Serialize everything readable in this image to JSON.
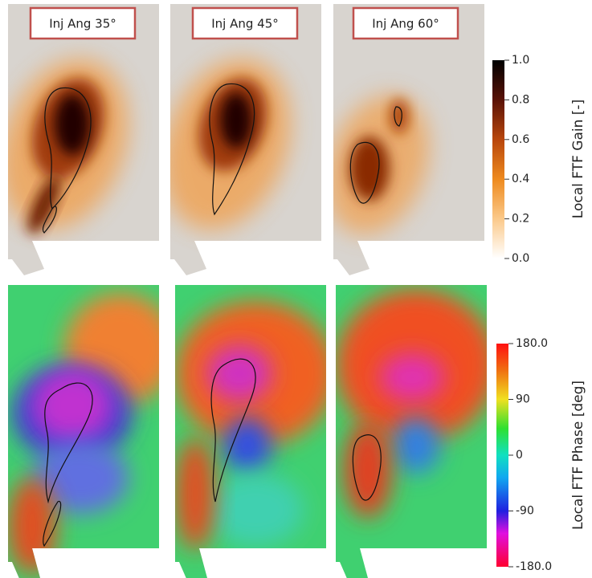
{
  "panels": [
    {
      "label": "Inj Ang 35°"
    },
    {
      "label": "Inj Ang 45°"
    },
    {
      "label": "Inj Ang 60°"
    }
  ],
  "colorbars": [
    {
      "title": "Local FTF Gain [-]",
      "lim": [
        0,
        1
      ],
      "ticks": [
        {
          "value": 0,
          "label": "0.0"
        },
        {
          "value": 0.2,
          "label": "0.2"
        },
        {
          "value": 0.4,
          "label": "0.4"
        },
        {
          "value": 0.6,
          "label": "0.6"
        },
        {
          "value": 0.8,
          "label": "0.8"
        },
        {
          "value": 1,
          "label": "1.0"
        }
      ]
    },
    {
      "title": "Local FTF Phase [deg]",
      "lim": [
        -180,
        180
      ],
      "ticks": [
        {
          "value": -180,
          "label": "-180.0"
        },
        -90,
        0,
        90,
        {
          "value": 180,
          "label": "180.0"
        }
      ]
    }
  ]
}
